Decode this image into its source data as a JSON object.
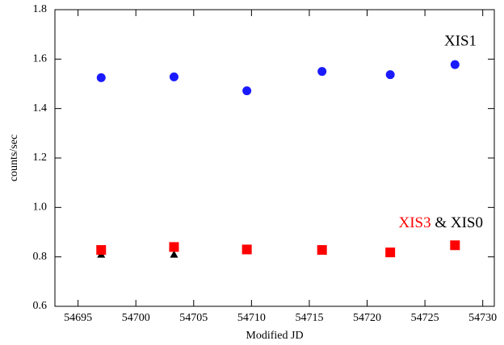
{
  "chart_data": {
    "type": "scatter",
    "x_label": "Modified JD",
    "y_label": "counts/sec",
    "xlim": [
      54693,
      54731
    ],
    "xticks": [
      54695,
      54700,
      54705,
      54710,
      54715,
      54720,
      54725,
      54730
    ],
    "ylim": [
      0.6,
      1.8
    ],
    "yticks": [
      0.6,
      0.8,
      {
        "value": 1,
        "label": "1.0"
      },
      1.2,
      1.4,
      1.6,
      1.8
    ],
    "annotations": [
      "&"
    ],
    "series": [
      {
        "name": "XIS1",
        "color": "#1a1aff",
        "marker": "circle",
        "x": [
          54697.0,
          54703.3,
          54709.6,
          54716.1,
          54722.0,
          54727.6
        ],
        "values": [
          1.525,
          1.528,
          1.472,
          1.55,
          1.537,
          1.578
        ]
      },
      {
        "name": "XIS3",
        "color": "#ff0000",
        "marker": "square",
        "x": [
          54697.0,
          54703.3,
          54709.6,
          54716.1,
          54722.0,
          54727.6
        ],
        "values": [
          0.828,
          0.84,
          0.83,
          0.828,
          0.818,
          0.847
        ]
      },
      {
        "name": "XIS0",
        "color": "#000000",
        "marker": "triangle",
        "x": [
          54697.0,
          54703.3,
          54709.6,
          54716.1,
          54722.0,
          54727.6
        ],
        "values": [
          0.81,
          0.81,
          null,
          null,
          null,
          null
        ]
      }
    ]
  }
}
